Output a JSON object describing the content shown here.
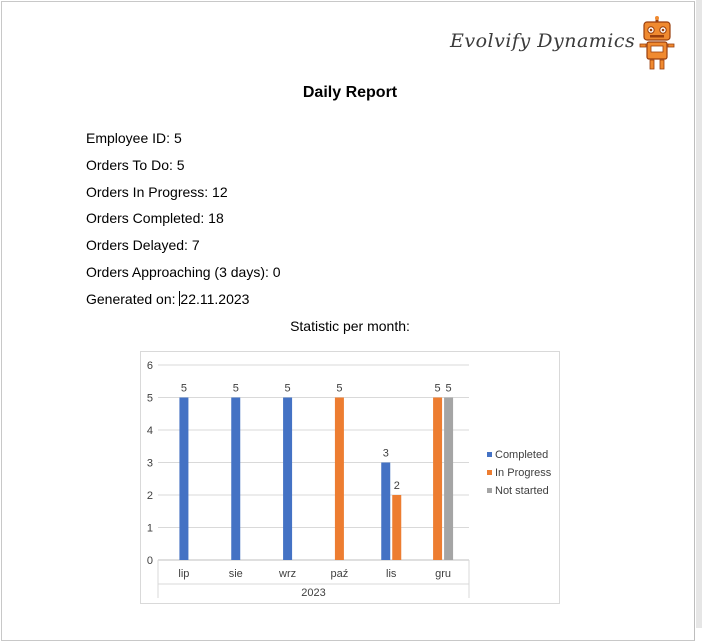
{
  "logo": {
    "text": "Evolvify Dynamics",
    "icon": "robot-icon",
    "colors": {
      "body": "#f08a30",
      "dark": "#9a3f0e"
    }
  },
  "report": {
    "title": "Daily Report",
    "lines": [
      {
        "label": "Employee ID: ",
        "value": "5"
      },
      {
        "label": "Orders To Do: ",
        "value": "5"
      },
      {
        "label": "Orders In Progress: ",
        "value": "12"
      },
      {
        "label": "Orders Completed: ",
        "value": "18"
      },
      {
        "label": "Orders Delayed: ",
        "value": "7"
      },
      {
        "label": "Orders Approaching (3 days): ",
        "value": "0"
      },
      {
        "label": "Generated on: ",
        "value": "22.11.2023"
      }
    ],
    "chart_caption": "Statistic per month:"
  },
  "chart_data": {
    "type": "bar",
    "categories": [
      "lip",
      "sie",
      "wrz",
      "paź",
      "lis",
      "gru"
    ],
    "category_group": "2023",
    "series": [
      {
        "name": "Completed",
        "color": "#4472c4",
        "values": [
          5,
          5,
          5,
          null,
          3,
          null
        ]
      },
      {
        "name": "In Progress",
        "color": "#ed7d31",
        "values": [
          null,
          null,
          null,
          5,
          2,
          5
        ]
      },
      {
        "name": "Not started",
        "color": "#a5a5a5",
        "values": [
          null,
          null,
          null,
          null,
          null,
          5
        ]
      }
    ],
    "ylim": [
      0,
      6
    ],
    "yticks": [
      0,
      1,
      2,
      3,
      4,
      5,
      6
    ],
    "grid": true,
    "legend": "right",
    "data_labels": true
  }
}
